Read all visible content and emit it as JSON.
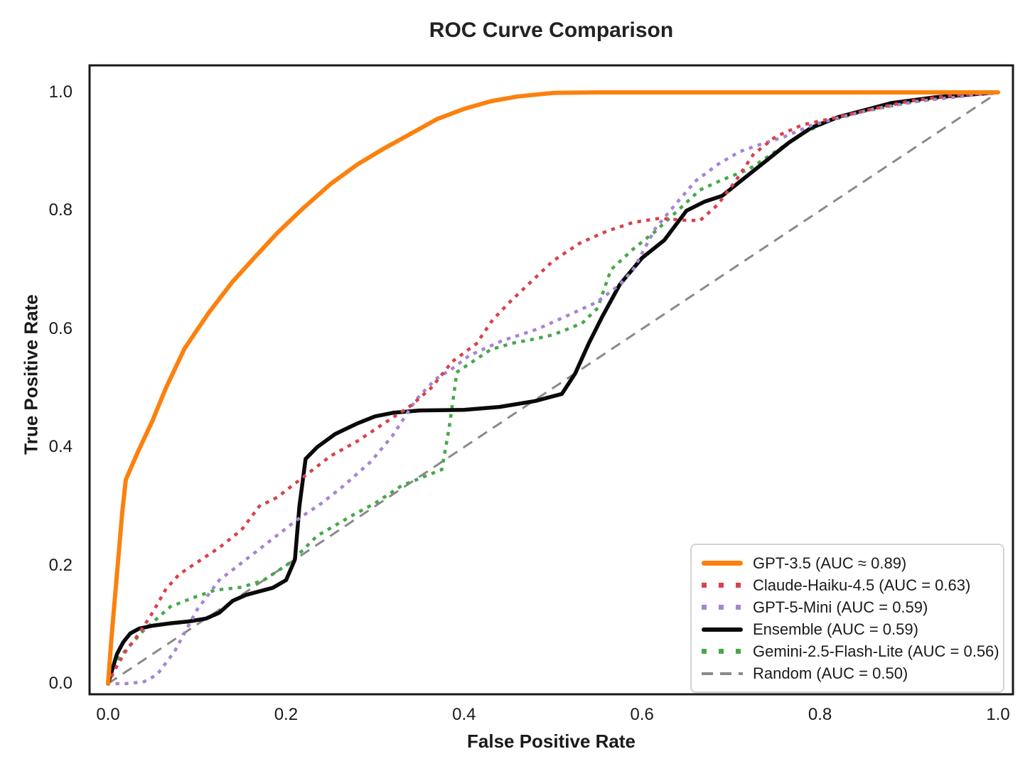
{
  "chart_data": {
    "type": "line",
    "title": "ROC Curve Comparison",
    "xlabel": "False Positive Rate",
    "ylabel": "True Positive Rate",
    "xlim": [
      0.0,
      1.0
    ],
    "ylim": [
      0.0,
      1.0
    ],
    "xticks": [
      "0.0",
      "0.2",
      "0.4",
      "0.6",
      "0.8",
      "1.0"
    ],
    "yticks": [
      "0.0",
      "0.2",
      "0.4",
      "0.6",
      "0.8",
      "1.0"
    ],
    "grid": false,
    "legend_position": "lower right",
    "series": [
      {
        "name": "gpt-3.5",
        "legend_label": "GPT-3.5 (AUC ≈ 0.89)",
        "auc": 0.89,
        "color": "#FB810E",
        "line_style": "solid",
        "line_width": 6,
        "points": [
          [
            0,
            0
          ],
          [
            0.004,
            0.08
          ],
          [
            0.008,
            0.15
          ],
          [
            0.012,
            0.22
          ],
          [
            0.016,
            0.29
          ],
          [
            0.02,
            0.345
          ],
          [
            0.033,
            0.39
          ],
          [
            0.05,
            0.445
          ],
          [
            0.065,
            0.5
          ],
          [
            0.086,
            0.567
          ],
          [
            0.113,
            0.627
          ],
          [
            0.14,
            0.68
          ],
          [
            0.166,
            0.723
          ],
          [
            0.19,
            0.762
          ],
          [
            0.22,
            0.805
          ],
          [
            0.25,
            0.845
          ],
          [
            0.28,
            0.878
          ],
          [
            0.31,
            0.905
          ],
          [
            0.34,
            0.93
          ],
          [
            0.37,
            0.955
          ],
          [
            0.4,
            0.972
          ],
          [
            0.43,
            0.985
          ],
          [
            0.46,
            0.993
          ],
          [
            0.5,
            0.999
          ],
          [
            0.55,
            1
          ],
          [
            1,
            1
          ]
        ]
      },
      {
        "name": "claude-haiku-4.5",
        "legend_label": "Claude-Haiku-4.5 (AUC = 0.63)",
        "auc": 0.63,
        "color": "#D8414E",
        "line_style": "dotted",
        "line_width": 4.5,
        "points": [
          [
            0,
            0
          ],
          [
            0.01,
            0.03
          ],
          [
            0.02,
            0.055
          ],
          [
            0.035,
            0.085
          ],
          [
            0.05,
            0.12
          ],
          [
            0.065,
            0.16
          ],
          [
            0.08,
            0.185
          ],
          [
            0.1,
            0.205
          ],
          [
            0.125,
            0.23
          ],
          [
            0.15,
            0.26
          ],
          [
            0.17,
            0.3
          ],
          [
            0.19,
            0.315
          ],
          [
            0.22,
            0.35
          ],
          [
            0.25,
            0.385
          ],
          [
            0.28,
            0.41
          ],
          [
            0.31,
            0.44
          ],
          [
            0.34,
            0.47
          ],
          [
            0.363,
            0.5
          ],
          [
            0.387,
            0.545
          ],
          [
            0.414,
            0.575
          ],
          [
            0.432,
            0.615
          ],
          [
            0.451,
            0.645
          ],
          [
            0.47,
            0.672
          ],
          [
            0.5,
            0.715
          ],
          [
            0.53,
            0.745
          ],
          [
            0.56,
            0.765
          ],
          [
            0.59,
            0.78
          ],
          [
            0.62,
            0.787
          ],
          [
            0.645,
            0.784
          ],
          [
            0.665,
            0.783
          ],
          [
            0.685,
            0.81
          ],
          [
            0.705,
            0.85
          ],
          [
            0.725,
            0.895
          ],
          [
            0.75,
            0.925
          ],
          [
            0.78,
            0.945
          ],
          [
            0.82,
            0.958
          ],
          [
            0.86,
            0.972
          ],
          [
            0.9,
            0.985
          ],
          [
            0.95,
            0.995
          ],
          [
            1,
            1
          ]
        ]
      },
      {
        "name": "gpt-5-mini",
        "legend_label": "GPT-5-Mini (AUC = 0.59)",
        "auc": 0.59,
        "color": "#A685D2",
        "line_style": "dotted",
        "line_width": 4.5,
        "points": [
          [
            0,
            0
          ],
          [
            0.02,
            0
          ],
          [
            0.04,
            0.003
          ],
          [
            0.055,
            0.015
          ],
          [
            0.075,
            0.055
          ],
          [
            0.1,
            0.125
          ],
          [
            0.125,
            0.175
          ],
          [
            0.155,
            0.21
          ],
          [
            0.185,
            0.245
          ],
          [
            0.215,
            0.28
          ],
          [
            0.24,
            0.305
          ],
          [
            0.265,
            0.335
          ],
          [
            0.295,
            0.375
          ],
          [
            0.32,
            0.42
          ],
          [
            0.346,
            0.48
          ],
          [
            0.368,
            0.515
          ],
          [
            0.387,
            0.533
          ],
          [
            0.406,
            0.555
          ],
          [
            0.443,
            0.58
          ],
          [
            0.467,
            0.592
          ],
          [
            0.483,
            0.6
          ],
          [
            0.517,
            0.623
          ],
          [
            0.549,
            0.645
          ],
          [
            0.575,
            0.675
          ],
          [
            0.59,
            0.7
          ],
          [
            0.615,
            0.77
          ],
          [
            0.64,
            0.815
          ],
          [
            0.66,
            0.85
          ],
          [
            0.685,
            0.878
          ],
          [
            0.71,
            0.9
          ],
          [
            0.735,
            0.913
          ],
          [
            0.76,
            0.925
          ],
          [
            0.79,
            0.944
          ],
          [
            0.82,
            0.957
          ],
          [
            0.86,
            0.972
          ],
          [
            0.91,
            0.985
          ],
          [
            1,
            1
          ]
        ]
      },
      {
        "name": "ensemble",
        "legend_label": "Ensemble (AUC = 0.59)",
        "auc": 0.59,
        "color": "#0a0a0a",
        "line_style": "solid",
        "line_width": 5.5,
        "points": [
          [
            0,
            0
          ],
          [
            0.005,
            0.025
          ],
          [
            0.01,
            0.05
          ],
          [
            0.017,
            0.07
          ],
          [
            0.025,
            0.085
          ],
          [
            0.035,
            0.093
          ],
          [
            0.05,
            0.098
          ],
          [
            0.07,
            0.102
          ],
          [
            0.09,
            0.105
          ],
          [
            0.11,
            0.11
          ],
          [
            0.125,
            0.12
          ],
          [
            0.14,
            0.14
          ],
          [
            0.155,
            0.15
          ],
          [
            0.17,
            0.156
          ],
          [
            0.185,
            0.162
          ],
          [
            0.2,
            0.175
          ],
          [
            0.21,
            0.21
          ],
          [
            0.215,
            0.3
          ],
          [
            0.222,
            0.38
          ],
          [
            0.235,
            0.4
          ],
          [
            0.255,
            0.422
          ],
          [
            0.28,
            0.44
          ],
          [
            0.3,
            0.452
          ],
          [
            0.32,
            0.458
          ],
          [
            0.35,
            0.462
          ],
          [
            0.4,
            0.463
          ],
          [
            0.44,
            0.468
          ],
          [
            0.48,
            0.478
          ],
          [
            0.51,
            0.49
          ],
          [
            0.525,
            0.525
          ],
          [
            0.54,
            0.575
          ],
          [
            0.555,
            0.62
          ],
          [
            0.575,
            0.675
          ],
          [
            0.6,
            0.72
          ],
          [
            0.625,
            0.75
          ],
          [
            0.65,
            0.8
          ],
          [
            0.67,
            0.815
          ],
          [
            0.69,
            0.825
          ],
          [
            0.715,
            0.855
          ],
          [
            0.74,
            0.885
          ],
          [
            0.765,
            0.915
          ],
          [
            0.79,
            0.94
          ],
          [
            0.82,
            0.958
          ],
          [
            0.85,
            0.97
          ],
          [
            0.88,
            0.982
          ],
          [
            0.93,
            0.992
          ],
          [
            1,
            1
          ]
        ]
      },
      {
        "name": "gemini-2.5-flash-lite",
        "legend_label": "Gemini-2.5-Flash-Lite (AUC = 0.56)",
        "auc": 0.56,
        "color": "#47A84B",
        "line_style": "dotted",
        "line_width": 4.5,
        "points": [
          [
            0,
            0
          ],
          [
            0.01,
            0.04
          ],
          [
            0.025,
            0.065
          ],
          [
            0.04,
            0.09
          ],
          [
            0.055,
            0.11
          ],
          [
            0.07,
            0.13
          ],
          [
            0.095,
            0.145
          ],
          [
            0.12,
            0.158
          ],
          [
            0.15,
            0.163
          ],
          [
            0.175,
            0.175
          ],
          [
            0.205,
            0.205
          ],
          [
            0.235,
            0.25
          ],
          [
            0.275,
            0.285
          ],
          [
            0.3,
            0.305
          ],
          [
            0.33,
            0.335
          ],
          [
            0.355,
            0.35
          ],
          [
            0.375,
            0.362
          ],
          [
            0.383,
            0.43
          ],
          [
            0.392,
            0.527
          ],
          [
            0.41,
            0.545
          ],
          [
            0.43,
            0.565
          ],
          [
            0.455,
            0.576
          ],
          [
            0.48,
            0.583
          ],
          [
            0.5,
            0.59
          ],
          [
            0.517,
            0.6
          ],
          [
            0.533,
            0.61
          ],
          [
            0.55,
            0.635
          ],
          [
            0.565,
            0.7
          ],
          [
            0.59,
            0.735
          ],
          [
            0.615,
            0.765
          ],
          [
            0.64,
            0.8
          ],
          [
            0.665,
            0.835
          ],
          [
            0.69,
            0.852
          ],
          [
            0.72,
            0.87
          ],
          [
            0.75,
            0.9
          ],
          [
            0.78,
            0.93
          ],
          [
            0.81,
            0.952
          ],
          [
            0.85,
            0.968
          ],
          [
            0.89,
            0.98
          ],
          [
            0.94,
            0.992
          ],
          [
            1,
            1
          ]
        ]
      },
      {
        "name": "random",
        "legend_label": "Random (AUC = 0.50)",
        "auc": 0.5,
        "color": "#8A8A8A",
        "line_style": "dashed",
        "line_width": 3,
        "points": [
          [
            0,
            0
          ],
          [
            1,
            1
          ]
        ]
      }
    ]
  }
}
